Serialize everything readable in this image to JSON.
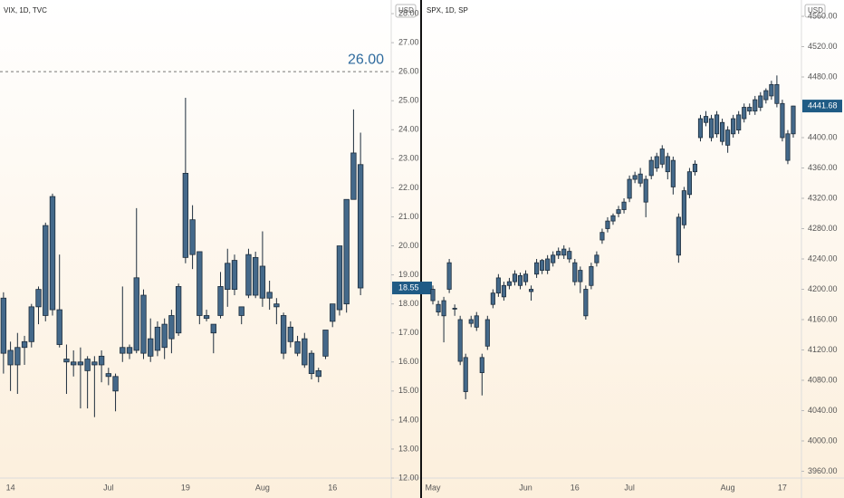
{
  "chart_data": [
    {
      "type": "candlestick",
      "title": "VIX, 1D, TVC",
      "y_unit": "USD",
      "color": "#44698a",
      "categories": [
        null,
        "14",
        null,
        null,
        null,
        null,
        null,
        null,
        null,
        null,
        null,
        null,
        null,
        null,
        null,
        "Jul",
        null,
        null,
        null,
        null,
        null,
        null,
        null,
        null,
        null,
        null,
        "19",
        null,
        null,
        null,
        null,
        null,
        null,
        null,
        null,
        null,
        null,
        "Aug",
        null,
        null,
        null,
        null,
        null,
        null,
        null,
        null,
        null,
        "16",
        null,
        null,
        null,
        null
      ],
      "open": [
        16.3,
        16.4,
        15.9,
        16.5,
        16.7,
        17.9,
        17.6,
        17.8,
        17.8,
        16.1,
        16.0,
        15.9,
        15.7,
        15.9,
        15.9,
        15.6,
        15.5,
        16.3,
        16.5,
        16.4,
        18.3,
        16.2,
        16.4,
        16.5,
        16.8,
        17.0,
        19.6,
        19.7,
        19.8,
        17.6,
        17.0,
        17.6,
        18.5,
        18.5,
        17.6,
        18.3,
        19.6,
        18.2,
        18.2,
        18.0,
        17.6,
        16.7,
        16.7,
        15.9,
        16.3,
        15.5,
        16.2,
        17.4,
        17.8,
        18.0,
        21.6,
        22.8
      ],
      "high": [
        18.4,
        16.7,
        17.0,
        16.9,
        18.0,
        18.6,
        20.8,
        21.8,
        19.7,
        16.6,
        16.4,
        16.5,
        16.2,
        16.2,
        16.4,
        15.8,
        15.6,
        18.6,
        16.6,
        21.3,
        18.5,
        17.5,
        17.4,
        17.5,
        17.8,
        18.7,
        25.1,
        21.4,
        19.8,
        17.8,
        17.3,
        19.1,
        19.9,
        19.7,
        17.9,
        19.9,
        19.8,
        20.5,
        18.8,
        18.2,
        17.7,
        17.4,
        16.9,
        17.0,
        16.4,
        15.8,
        17.1,
        18.0,
        20.0,
        21.6,
        24.7,
        23.9
      ],
      "low": [
        15.6,
        15.0,
        14.9,
        15.9,
        16.5,
        17.3,
        17.4,
        17.6,
        16.5,
        14.9,
        15.5,
        14.4,
        14.4,
        14.1,
        15.3,
        15.2,
        14.3,
        16.0,
        16.1,
        16.3,
        16.1,
        16.0,
        16.2,
        16.1,
        16.3,
        16.9,
        19.4,
        19.2,
        17.3,
        17.4,
        16.3,
        17.5,
        17.9,
        18.3,
        17.3,
        18.2,
        18.2,
        17.9,
        17.8,
        17.3,
        16.1,
        16.5,
        16.2,
        15.8,
        15.4,
        15.3,
        16.1,
        17.2,
        17.6,
        17.7,
        21.6,
        18.3
      ],
      "close": [
        18.2,
        15.9,
        16.5,
        16.7,
        17.9,
        18.5,
        20.7,
        21.7,
        16.6,
        16.0,
        15.9,
        16.0,
        16.1,
        16.0,
        16.2,
        15.5,
        15.0,
        16.5,
        16.3,
        18.9,
        16.3,
        16.8,
        17.2,
        17.3,
        17.6,
        18.6,
        22.5,
        20.9,
        17.6,
        17.5,
        17.3,
        18.6,
        19.4,
        19.5,
        17.9,
        19.7,
        18.3,
        19.3,
        18.4,
        17.9,
        16.3,
        17.2,
        16.3,
        16.8,
        15.6,
        15.7,
        17.1,
        18.0,
        20.0,
        21.6,
        23.2,
        18.55
      ],
      "ylim": [
        12,
        28.47
      ],
      "yticks": [
        {
          "value": 12,
          "label": "12.00"
        },
        {
          "value": 13,
          "label": "13.00"
        },
        {
          "value": 14,
          "label": "14.00"
        },
        {
          "value": 15,
          "label": "15.00"
        },
        {
          "value": 16,
          "label": "16.00"
        },
        {
          "value": 17,
          "label": "17.00"
        },
        {
          "value": 18,
          "label": "18.00"
        },
        {
          "value": 19,
          "label": "19.00"
        },
        {
          "value": 20,
          "label": "20.00"
        },
        {
          "value": 21,
          "label": "21.00"
        },
        {
          "value": 22,
          "label": "22.00"
        },
        {
          "value": 23,
          "label": "23.00"
        },
        {
          "value": 24,
          "label": "24.00"
        },
        {
          "value": 25,
          "label": "25.00"
        },
        {
          "value": 26,
          "label": "26.00"
        },
        {
          "value": 27,
          "label": "27.00"
        },
        {
          "value": 28,
          "label": "28.00"
        }
      ],
      "hline": {
        "value": 26,
        "label": "26.00",
        "color": "#2f6b9e"
      },
      "last_price": {
        "value": 18.55,
        "label": "18.55",
        "color": "#1f5b85"
      }
    },
    {
      "type": "candlestick",
      "title": "SPX, 1D, SP",
      "y_unit": "USD",
      "color": "#44698a",
      "categories": [
        "May",
        null,
        null,
        null,
        null,
        null,
        null,
        null,
        null,
        null,
        null,
        null,
        null,
        null,
        null,
        null,
        null,
        "Jun",
        null,
        null,
        null,
        null,
        null,
        null,
        null,
        null,
        "16",
        null,
        null,
        null,
        null,
        null,
        null,
        null,
        null,
        null,
        "Jul",
        null,
        null,
        null,
        null,
        null,
        null,
        null,
        null,
        null,
        null,
        null,
        null,
        null,
        null,
        null,
        null,
        null,
        "Aug",
        null,
        null,
        null,
        null,
        null,
        null,
        null,
        null,
        null,
        "17",
        null,
        null
      ],
      "open": [
        4200,
        4180,
        4165,
        4200,
        4175,
        4160,
        4110,
        4155,
        4150,
        4110,
        4125,
        4180,
        4195,
        4205,
        4205,
        4210,
        4218,
        4210,
        4200,
        4220,
        4225,
        4225,
        4235,
        4245,
        4245,
        4250,
        4235,
        4225,
        4200,
        4205,
        4235,
        4265,
        4280,
        4290,
        4300,
        4305,
        4320,
        4345,
        4352,
        4345,
        4350,
        4360,
        4365,
        4375,
        4370,
        4295,
        4285,
        4325,
        4355,
        4400,
        4420,
        4425,
        4405,
        4420,
        4410,
        4405,
        4410,
        4425,
        4435,
        4435,
        4440,
        4450,
        4455,
        4470,
        4445,
        4405,
        4405
      ],
      "high": [
        4205,
        4185,
        4190,
        4240,
        4180,
        4165,
        4115,
        4165,
        4170,
        4115,
        4165,
        4200,
        4220,
        4210,
        4215,
        4225,
        4222,
        4225,
        4205,
        4240,
        4240,
        4245,
        4250,
        4255,
        4258,
        4255,
        4240,
        4230,
        4205,
        4235,
        4250,
        4280,
        4295,
        4300,
        4310,
        4320,
        4350,
        4355,
        4360,
        4350,
        4375,
        4380,
        4390,
        4380,
        4375,
        4300,
        4335,
        4360,
        4370,
        4430,
        4435,
        4430,
        4435,
        4425,
        4415,
        4430,
        4435,
        4445,
        4445,
        4455,
        4460,
        4465,
        4475,
        4482,
        4450,
        4410,
        4442
      ],
      "low": [
        4180,
        4165,
        4130,
        4195,
        4165,
        4100,
        4055,
        4150,
        4145,
        4060,
        4120,
        4175,
        4190,
        4185,
        4200,
        4205,
        4200,
        4205,
        4185,
        4215,
        4220,
        4220,
        4230,
        4240,
        4240,
        4235,
        4205,
        4195,
        4160,
        4200,
        4230,
        4260,
        4275,
        4285,
        4295,
        4300,
        4315,
        4340,
        4335,
        4295,
        4345,
        4355,
        4360,
        4345,
        4325,
        4235,
        4280,
        4320,
        4350,
        4395,
        4415,
        4395,
        4400,
        4390,
        4380,
        4400,
        4405,
        4420,
        4430,
        4430,
        4435,
        4445,
        4450,
        4440,
        4395,
        4365,
        4400
      ],
      "close": [
        4185,
        4170,
        4185,
        4235,
        4175,
        4105,
        4065,
        4160,
        4165,
        4090,
        4160,
        4195,
        4215,
        4190,
        4210,
        4220,
        4205,
        4220,
        4197,
        4235,
        4238,
        4240,
        4245,
        4250,
        4253,
        4240,
        4210,
        4210,
        4165,
        4230,
        4245,
        4275,
        4290,
        4297,
        4305,
        4315,
        4345,
        4350,
        4340,
        4315,
        4370,
        4375,
        4385,
        4355,
        4335,
        4245,
        4330,
        4355,
        4365,
        4425,
        4428,
        4400,
        4430,
        4395,
        4390,
        4425,
        4430,
        4440,
        4440,
        4450,
        4455,
        4462,
        4470,
        4445,
        4400,
        4370,
        4441.68
      ],
      "ylim": [
        3951,
        4581.5
      ],
      "yticks": [
        {
          "value": 3960,
          "label": "3960.00"
        },
        {
          "value": 4000,
          "label": "4000.00"
        },
        {
          "value": 4040,
          "label": "4040.00"
        },
        {
          "value": 4080,
          "label": "4080.00"
        },
        {
          "value": 4120,
          "label": "4120.00"
        },
        {
          "value": 4160,
          "label": "4160.00"
        },
        {
          "value": 4200,
          "label": "4200.00"
        },
        {
          "value": 4240,
          "label": "4240.00"
        },
        {
          "value": 4280,
          "label": "4280.00"
        },
        {
          "value": 4320,
          "label": "4320.00"
        },
        {
          "value": 4360,
          "label": "4360.00"
        },
        {
          "value": 4400,
          "label": "4400.00"
        },
        {
          "value": 4480,
          "label": "4480.00"
        },
        {
          "value": 4520,
          "label": "4520.00"
        },
        {
          "value": 4560,
          "label": "4560.00"
        }
      ],
      "last_price": {
        "value": 4441.68,
        "label": "4441.68",
        "color": "#1f5b85"
      }
    }
  ]
}
